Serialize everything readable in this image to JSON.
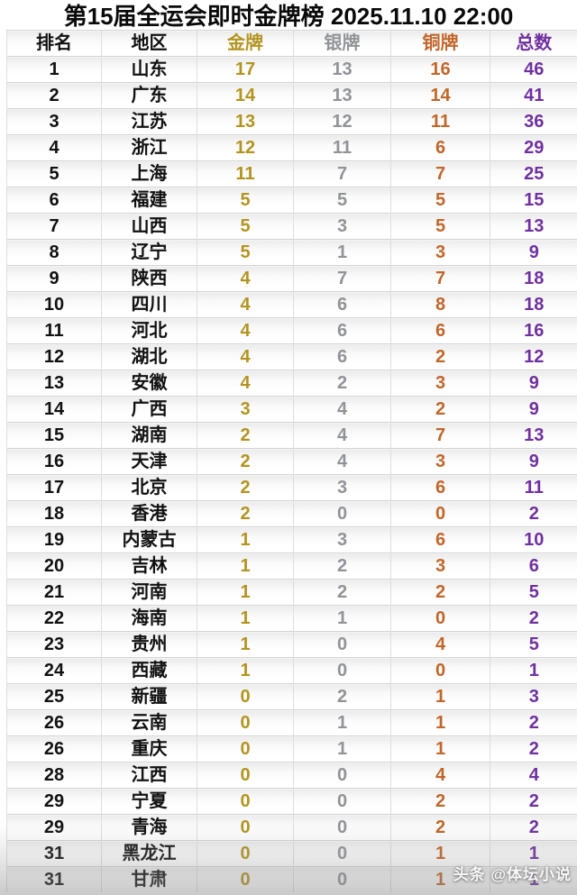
{
  "title": "第15届全运会即时金牌榜 2025.11.10 22:00",
  "watermark": "头条 @体坛小说",
  "colors": {
    "gold": "#b3941f",
    "silver": "#919398",
    "bronze": "#c2662a",
    "purple": "#7030a0",
    "ink": "#111111",
    "grid": "#d3d3d3",
    "gridv": "#dedede"
  },
  "chart_data": {
    "type": "table",
    "title": "第15届全运会即时金牌榜",
    "as_of": "2025.11.10 22:00",
    "columns": [
      "排名",
      "地区",
      "金牌",
      "银牌",
      "铜牌",
      "总数"
    ],
    "rows": [
      [
        1,
        "山东",
        17,
        13,
        16,
        46
      ],
      [
        2,
        "广东",
        14,
        13,
        14,
        41
      ],
      [
        3,
        "江苏",
        13,
        12,
        11,
        36
      ],
      [
        4,
        "浙江",
        12,
        11,
        6,
        29
      ],
      [
        5,
        "上海",
        11,
        7,
        7,
        25
      ],
      [
        6,
        "福建",
        5,
        5,
        5,
        15
      ],
      [
        7,
        "山西",
        5,
        3,
        5,
        13
      ],
      [
        8,
        "辽宁",
        5,
        1,
        3,
        9
      ],
      [
        9,
        "陕西",
        4,
        7,
        7,
        18
      ],
      [
        10,
        "四川",
        4,
        6,
        8,
        18
      ],
      [
        11,
        "河北",
        4,
        6,
        6,
        16
      ],
      [
        12,
        "湖北",
        4,
        6,
        2,
        12
      ],
      [
        13,
        "安徽",
        4,
        2,
        3,
        9
      ],
      [
        14,
        "广西",
        3,
        4,
        2,
        9
      ],
      [
        15,
        "湖南",
        2,
        4,
        7,
        13
      ],
      [
        16,
        "天津",
        2,
        4,
        3,
        9
      ],
      [
        17,
        "北京",
        2,
        3,
        6,
        11
      ],
      [
        18,
        "香港",
        2,
        0,
        0,
        2
      ],
      [
        19,
        "内蒙古",
        1,
        3,
        6,
        10
      ],
      [
        20,
        "吉林",
        1,
        2,
        3,
        6
      ],
      [
        21,
        "河南",
        1,
        2,
        2,
        5
      ],
      [
        22,
        "海南",
        1,
        1,
        0,
        2
      ],
      [
        23,
        "贵州",
        1,
        0,
        4,
        5
      ],
      [
        24,
        "西藏",
        1,
        0,
        0,
        1
      ],
      [
        25,
        "新疆",
        0,
        2,
        1,
        3
      ],
      [
        26,
        "云南",
        0,
        1,
        1,
        2
      ],
      [
        26,
        "重庆",
        0,
        1,
        1,
        2
      ],
      [
        28,
        "江西",
        0,
        0,
        4,
        4
      ],
      [
        29,
        "宁夏",
        0,
        0,
        2,
        2
      ],
      [
        29,
        "青海",
        0,
        0,
        2,
        2
      ],
      [
        31,
        "黑龙江",
        0,
        0,
        1,
        1
      ],
      [
        31,
        "甘肃",
        0,
        0,
        1,
        1
      ]
    ]
  }
}
